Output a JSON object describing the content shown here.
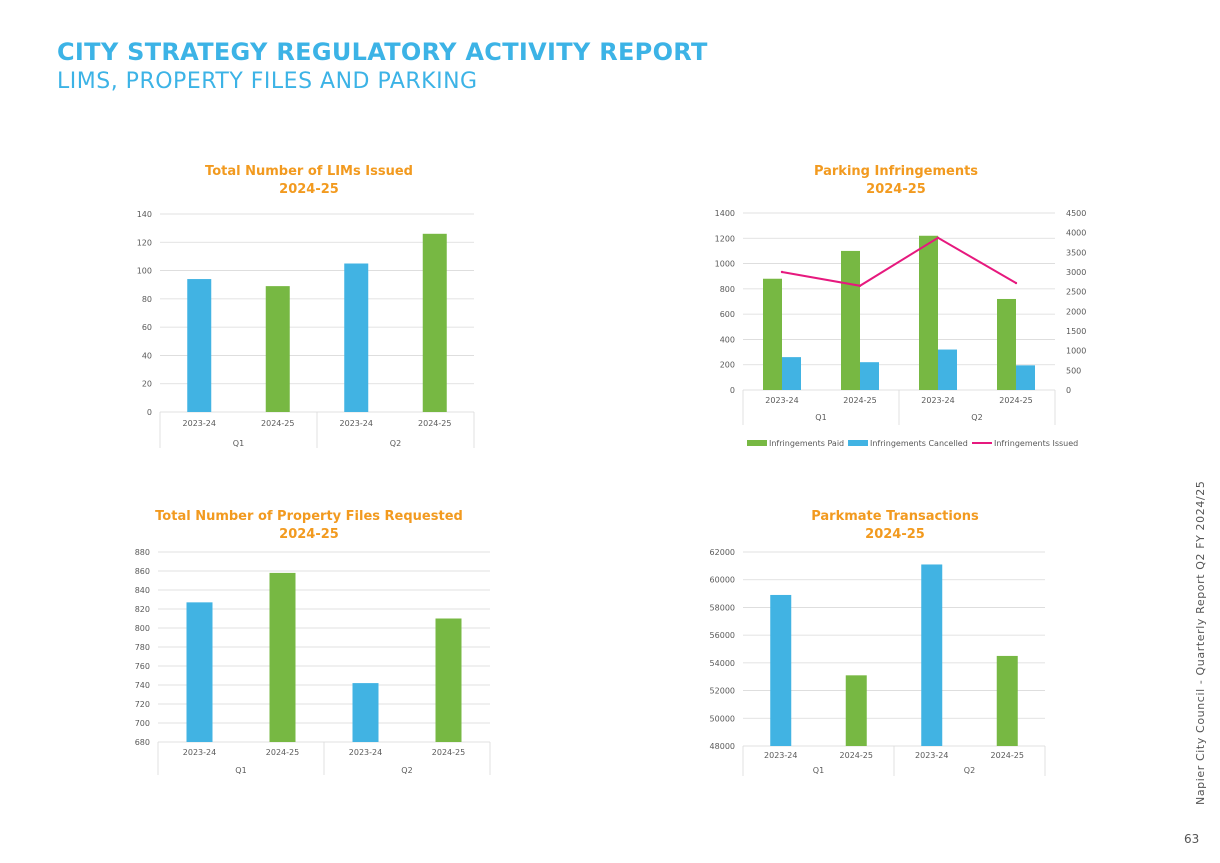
{
  "header": {
    "title": "CITY STRATEGY REGULATORY ACTIVITY REPORT",
    "subtitle": "LIMS, PROPERTY FILES AND PARKING"
  },
  "footer": {
    "side_text": "Napier City Council - Quarterly Report Q2 FY 2024/25",
    "page_number": "63"
  },
  "colors": {
    "blue": "#41b3e3",
    "green": "#77b843",
    "pink": "#e6197e",
    "title_orange": "#f29a1f"
  },
  "chart_data": [
    {
      "type": "bar",
      "title": "Total Number of LIMs Issued",
      "subtitle": "2024-25",
      "categories": [
        "2023-24",
        "2024-25",
        "2023-24",
        "2024-25"
      ],
      "groups": [
        "Q1",
        "Q2"
      ],
      "values": [
        94,
        89,
        105,
        126
      ],
      "ylim": [
        0,
        140
      ],
      "yticks": [
        0,
        20,
        40,
        60,
        80,
        100,
        120,
        140
      ],
      "grid": true
    },
    {
      "type": "bar",
      "title": "Parking Infringements",
      "subtitle": "2024-25",
      "categories": [
        "2023-24",
        "2024-25",
        "2023-24",
        "2024-25"
      ],
      "groups": [
        "Q1",
        "Q2"
      ],
      "series": [
        {
          "name": "Infringements Paid",
          "type": "bar",
          "axis": "left",
          "color": "#77b843",
          "values": [
            880,
            1100,
            1220,
            720
          ]
        },
        {
          "name": "Infringements Cancelled",
          "type": "bar",
          "axis": "left",
          "color": "#41b3e3",
          "values": [
            260,
            220,
            320,
            195
          ]
        },
        {
          "name": "Infringements Issued",
          "type": "line",
          "axis": "right",
          "color": "#e6197e",
          "values": [
            3000,
            2650,
            3870,
            2720
          ]
        }
      ],
      "ylim": [
        0,
        1400
      ],
      "yticks": [
        0,
        200,
        400,
        600,
        800,
        1000,
        1200,
        1400
      ],
      "y2lim": [
        0,
        4500
      ],
      "y2ticks": [
        0,
        500,
        1000,
        1500,
        2000,
        2500,
        3000,
        3500,
        4000,
        4500
      ],
      "legend": "bottom",
      "grid": true
    },
    {
      "type": "bar",
      "title": "Total Number of Property Files Requested",
      "subtitle": "2024-25",
      "categories": [
        "2023-24",
        "2024-25",
        "2023-24",
        "2024-25"
      ],
      "groups": [
        "Q1",
        "Q2"
      ],
      "values": [
        827,
        858,
        742,
        810
      ],
      "ylim": [
        680,
        880
      ],
      "yticks": [
        680,
        700,
        720,
        740,
        760,
        780,
        800,
        820,
        840,
        860,
        880
      ],
      "grid": true
    },
    {
      "type": "bar",
      "title": "Parkmate Transactions",
      "subtitle": "2024-25",
      "categories": [
        "2023-24",
        "2024-25",
        "2023-24",
        "2024-25"
      ],
      "groups": [
        "Q1",
        "Q2"
      ],
      "values": [
        58900,
        53100,
        61100,
        54500
      ],
      "ylim": [
        48000,
        62000
      ],
      "yticks": [
        48000,
        50000,
        52000,
        54000,
        56000,
        58000,
        60000,
        62000
      ],
      "grid": true
    }
  ]
}
